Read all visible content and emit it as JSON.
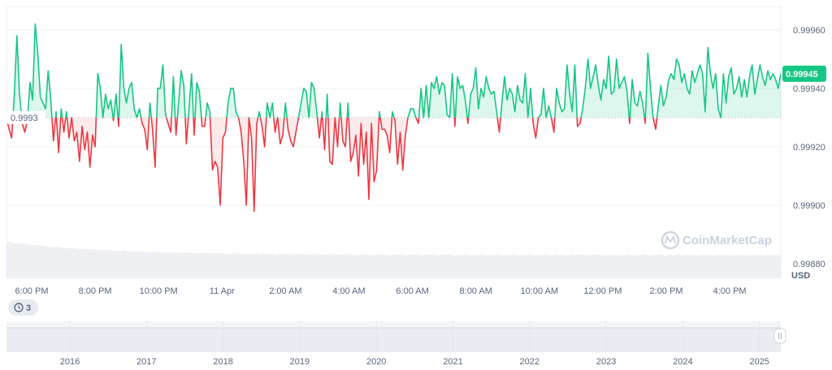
{
  "chart_data": {
    "type": "line",
    "currency": "USD",
    "baseline": 0.9993,
    "baseline_label": "0.9993",
    "current_value": 0.99945,
    "current_label": "0.99945",
    "ylim": [
      0.99875,
      0.99968
    ],
    "y_ticks": [
      "0.99880",
      "0.99900",
      "0.99920",
      "0.99940",
      "0.99960"
    ],
    "x_ticks": [
      "6:00 PM",
      "8:00 PM",
      "10:00 PM",
      "11 Apr",
      "2:00 AM",
      "4:00 AM",
      "6:00 AM",
      "8:00 AM",
      "10:00 AM",
      "12:00 PM",
      "2:00 PM",
      "4:00 PM"
    ],
    "x_start": "2025-04-10 17:00",
    "x_end": "2025-04-11 17:30",
    "series": [
      {
        "values": [
          0.9993,
          0.99926,
          0.99923,
          0.99938,
          0.99958,
          0.99938,
          0.99928,
          0.99925,
          0.99929,
          0.99942,
          0.99936,
          0.99962,
          0.99952,
          0.99937,
          0.99935,
          0.99933,
          0.99946,
          0.99936,
          0.99922,
          0.99932,
          0.99918,
          0.99933,
          0.99925,
          0.99932,
          0.99923,
          0.9993,
          0.99922,
          0.99925,
          0.99915,
          0.99927,
          0.99919,
          0.99925,
          0.99913,
          0.99924,
          0.9992,
          0.99945,
          0.9994,
          0.9993,
          0.99938,
          0.99933,
          0.99936,
          0.99929,
          0.99938,
          0.99927,
          0.99955,
          0.9994,
          0.99935,
          0.9994,
          0.99942,
          0.99933,
          0.9993,
          0.99933,
          0.99928,
          0.99926,
          0.99919,
          0.99935,
          0.99926,
          0.99913,
          0.9994,
          0.9994,
          0.99948,
          0.99931,
          0.99928,
          0.99925,
          0.99944,
          0.99924,
          0.99935,
          0.99946,
          0.99941,
          0.99921,
          0.99933,
          0.99945,
          0.99924,
          0.99942,
          0.99939,
          0.99927,
          0.99927,
          0.99935,
          0.99932,
          0.99912,
          0.99915,
          0.99913,
          0.999,
          0.99923,
          0.99925,
          0.99935,
          0.9994,
          0.9994,
          0.99932,
          0.9993,
          0.99925,
          0.99915,
          0.999,
          0.9993,
          0.99923,
          0.99898,
          0.99928,
          0.99932,
          0.99927,
          0.9992,
          0.99935,
          0.9993,
          0.99935,
          0.99925,
          0.9993,
          0.99921,
          0.99924,
          0.99935,
          0.99926,
          0.99922,
          0.9992,
          0.99925,
          0.9993,
          0.99935,
          0.9994,
          0.99939,
          0.9993,
          0.99942,
          0.9994,
          0.99932,
          0.99923,
          0.99932,
          0.99919,
          0.99938,
          0.99915,
          0.99914,
          0.9993,
          0.9992,
          0.99935,
          0.99922,
          0.9992,
          0.99935,
          0.99915,
          0.99918,
          0.99924,
          0.9991,
          0.99928,
          0.99914,
          0.99925,
          0.99902,
          0.99928,
          0.99908,
          0.99912,
          0.99932,
          0.99926,
          0.99926,
          0.99924,
          0.99918,
          0.99932,
          0.99929,
          0.99914,
          0.99925,
          0.99912,
          0.99924,
          0.9993,
          0.99933,
          0.99933,
          0.9993,
          0.99928,
          0.9994,
          0.9993,
          0.99941,
          0.9993,
          0.99942,
          0.9994,
          0.99944,
          0.99938,
          0.99942,
          0.99941,
          0.99931,
          0.9993,
          0.99945,
          0.99927,
          0.99944,
          0.9994,
          0.99941,
          0.99936,
          0.99928,
          0.99938,
          0.9994,
          0.99947,
          0.99933,
          0.9994,
          0.99937,
          0.99944,
          0.9994,
          0.99938,
          0.99939,
          0.99932,
          0.99925,
          0.99935,
          0.99944,
          0.99936,
          0.9994,
          0.99938,
          0.99932,
          0.99941,
          0.99936,
          0.99935,
          0.99945,
          0.9993,
          0.9994,
          0.99928,
          0.99923,
          0.9993,
          0.99931,
          0.9994,
          0.9993,
          0.99934,
          0.9993,
          0.99925,
          0.9994,
          0.99935,
          0.99932,
          0.99933,
          0.99948,
          0.99938,
          0.99932,
          0.99948,
          0.99927,
          0.99928,
          0.99933,
          0.9994,
          0.9995,
          0.9994,
          0.99944,
          0.99948,
          0.99941,
          0.99936,
          0.99943,
          0.9994,
          0.99951,
          0.99938,
          0.99939,
          0.9995,
          0.9994,
          0.99942,
          0.99944,
          0.99939,
          0.99928,
          0.99943,
          0.99935,
          0.99934,
          0.99939,
          0.99935,
          0.99928,
          0.99952,
          0.9994,
          0.9993,
          0.99926,
          0.99934,
          0.99941,
          0.99934,
          0.99937,
          0.99943,
          0.99945,
          0.99943,
          0.9995,
          0.99948,
          0.99942,
          0.99945,
          0.9994,
          0.99938,
          0.99946,
          0.99942,
          0.99945,
          0.99948,
          0.99945,
          0.99932,
          0.99954,
          0.99945,
          0.9994,
          0.99945,
          0.99933,
          0.9993,
          0.99945,
          0.99935,
          0.99944,
          0.99947,
          0.99938,
          0.9994,
          0.99944,
          0.99937,
          0.99943,
          0.99937,
          0.99944,
          0.99948,
          0.99938,
          0.99943,
          0.99948,
          0.99944,
          0.99941,
          0.99946,
          0.99943,
          0.99945,
          0.99943,
          0.9994,
          0.99945
        ]
      }
    ],
    "navigator_ticks": [
      "2016",
      "2017",
      "2018",
      "2019",
      "2020",
      "2021",
      "2022",
      "2023",
      "2024",
      "2025"
    ]
  },
  "watermark": "CoinMarketCap",
  "events": {
    "count": "3",
    "icon": "clock-history-icon"
  },
  "colors": {
    "up": "#16c784",
    "down": "#ea3943",
    "accent": "#16c784",
    "grid": "#eff2f5"
  }
}
